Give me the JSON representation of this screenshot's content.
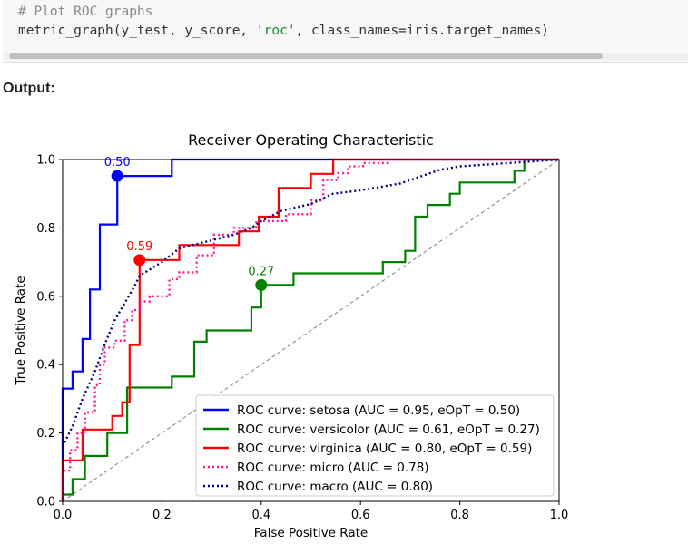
{
  "code": {
    "comment": "# Plot ROC graphs",
    "call_prefix": "metric_graph(y_test, y_score, ",
    "call_string": "'roc'",
    "call_suffix": ", class_names=iris.target_names)"
  },
  "output_label": "Output:",
  "chart_data": {
    "type": "line",
    "title": "Receiver Operating Characteristic",
    "xlabel": "False Positive Rate",
    "ylabel": "True Positive Rate",
    "xlim": [
      0,
      1
    ],
    "ylim": [
      0,
      1
    ],
    "xticks": [
      "0.0",
      "0.2",
      "0.4",
      "0.6",
      "0.8",
      "1.0"
    ],
    "yticks": [
      "0.0",
      "0.2",
      "0.4",
      "0.6",
      "0.8",
      "1.0"
    ],
    "grid": false,
    "legend_position": "lower-right",
    "series": [
      {
        "name": "ROC curve: setosa (AUC = 0.95, eOpT = 0.50)",
        "color": "#0000ff",
        "style": "solid",
        "x": [
          0.0,
          0.0,
          0.02,
          0.02,
          0.04,
          0.04,
          0.055,
          0.055,
          0.075,
          0.075,
          0.11,
          0.11,
          0.22,
          0.22,
          1.0
        ],
        "y": [
          0.0,
          0.33,
          0.33,
          0.38,
          0.38,
          0.475,
          0.475,
          0.62,
          0.62,
          0.81,
          0.81,
          0.952,
          0.952,
          1.0,
          1.0
        ],
        "marker": {
          "x": 0.11,
          "y": 0.952,
          "label": "0.50"
        }
      },
      {
        "name": "ROC curve: versicolor (AUC = 0.61, eOpT = 0.27)",
        "color": "#008000",
        "style": "solid",
        "x": [
          0.0,
          0.0,
          0.02,
          0.02,
          0.045,
          0.045,
          0.09,
          0.09,
          0.13,
          0.13,
          0.22,
          0.22,
          0.265,
          0.265,
          0.29,
          0.29,
          0.38,
          0.38,
          0.4,
          0.4,
          0.465,
          0.465,
          0.645,
          0.645,
          0.69,
          0.69,
          0.71,
          0.71,
          0.735,
          0.735,
          0.78,
          0.78,
          0.8,
          0.8,
          0.91,
          0.91,
          0.93,
          0.93,
          1.0
        ],
        "y": [
          0.0,
          0.02,
          0.02,
          0.065,
          0.065,
          0.133,
          0.133,
          0.2,
          0.2,
          0.333,
          0.333,
          0.365,
          0.365,
          0.467,
          0.467,
          0.5,
          0.5,
          0.567,
          0.567,
          0.633,
          0.633,
          0.667,
          0.667,
          0.7,
          0.7,
          0.733,
          0.733,
          0.833,
          0.833,
          0.867,
          0.867,
          0.9,
          0.9,
          0.933,
          0.933,
          0.967,
          0.967,
          1.0,
          1.0
        ],
        "marker": {
          "x": 0.4,
          "y": 0.633,
          "label": "0.27"
        }
      },
      {
        "name": "ROC curve: virginica (AUC = 0.80, eOpT = 0.59)",
        "color": "#ff0000",
        "style": "solid",
        "x": [
          0.0,
          0.0,
          0.04,
          0.04,
          0.1,
          0.1,
          0.12,
          0.12,
          0.135,
          0.135,
          0.155,
          0.155,
          0.235,
          0.235,
          0.355,
          0.355,
          0.395,
          0.395,
          0.435,
          0.435,
          0.5,
          0.5,
          0.545,
          0.545,
          1.0
        ],
        "y": [
          0.0,
          0.12,
          0.12,
          0.21,
          0.21,
          0.25,
          0.25,
          0.29,
          0.29,
          0.457,
          0.457,
          0.706,
          0.706,
          0.75,
          0.75,
          0.79,
          0.79,
          0.833,
          0.833,
          0.917,
          0.917,
          0.958,
          0.958,
          1.0,
          1.0
        ],
        "marker": {
          "x": 0.155,
          "y": 0.706,
          "label": "0.59"
        }
      },
      {
        "name": "ROC curve: micro (AUC = 0.78)",
        "color": "#ff1493",
        "style": "dotted",
        "x": [
          0.0,
          0.0,
          0.015,
          0.015,
          0.03,
          0.03,
          0.045,
          0.045,
          0.065,
          0.065,
          0.075,
          0.075,
          0.085,
          0.085,
          0.105,
          0.105,
          0.125,
          0.125,
          0.14,
          0.14,
          0.155,
          0.155,
          0.175,
          0.175,
          0.215,
          0.215,
          0.235,
          0.235,
          0.27,
          0.27,
          0.305,
          0.305,
          0.345,
          0.345,
          0.39,
          0.39,
          0.45,
          0.45,
          0.5,
          0.5,
          0.525,
          0.525,
          0.555,
          0.555,
          0.575,
          0.575,
          0.605,
          0.605,
          0.655,
          0.655,
          0.7,
          0.7,
          0.72,
          0.72,
          0.8,
          0.8,
          1.0
        ],
        "y": [
          0.0,
          0.09,
          0.09,
          0.15,
          0.15,
          0.2,
          0.2,
          0.26,
          0.26,
          0.34,
          0.34,
          0.4,
          0.4,
          0.45,
          0.45,
          0.47,
          0.47,
          0.53,
          0.53,
          0.56,
          0.56,
          0.585,
          0.585,
          0.6,
          0.6,
          0.65,
          0.65,
          0.67,
          0.67,
          0.72,
          0.72,
          0.78,
          0.78,
          0.8,
          0.8,
          0.82,
          0.82,
          0.84,
          0.84,
          0.88,
          0.88,
          0.94,
          0.94,
          0.96,
          0.96,
          0.98,
          0.98,
          0.99,
          0.99,
          1.0,
          1.0,
          1.0,
          1.0,
          1.0,
          1.0,
          1.0,
          1.0
        ]
      },
      {
        "name": "ROC curve: macro (AUC = 0.80)",
        "color": "#000080",
        "style": "dotted",
        "x": [
          0.0,
          0.02,
          0.04,
          0.065,
          0.085,
          0.105,
          0.125,
          0.145,
          0.155,
          0.2,
          0.235,
          0.29,
          0.345,
          0.38,
          0.4,
          0.44,
          0.5,
          0.545,
          0.6,
          0.64,
          0.68,
          0.72,
          0.76,
          0.8,
          0.85,
          0.9,
          0.95,
          1.0
        ],
        "y": [
          0.16,
          0.22,
          0.3,
          0.38,
          0.46,
          0.53,
          0.58,
          0.63,
          0.66,
          0.7,
          0.74,
          0.76,
          0.78,
          0.8,
          0.82,
          0.85,
          0.87,
          0.9,
          0.91,
          0.92,
          0.93,
          0.95,
          0.97,
          0.98,
          0.985,
          0.99,
          0.995,
          1.0
        ]
      }
    ],
    "reference_line": {
      "x": [
        0,
        1
      ],
      "y": [
        0,
        1
      ],
      "color": "#808080",
      "style": "dashed"
    }
  }
}
